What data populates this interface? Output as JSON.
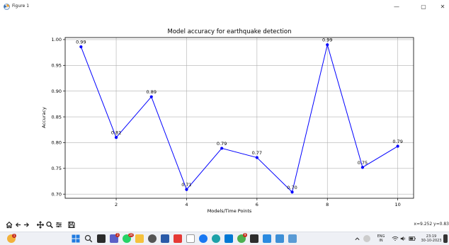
{
  "window": {
    "title": "Figure 1",
    "minimize": "—",
    "maximize": "▢",
    "close": "✕"
  },
  "chart_data": {
    "type": "line",
    "title": "Model accuracy for earthquake detection",
    "xlabel": "Models/Time Points",
    "ylabel": "Accuracy",
    "x": [
      1,
      2,
      3,
      4,
      5,
      6,
      7,
      8,
      9,
      10
    ],
    "values": [
      0.986,
      0.81,
      0.889,
      0.709,
      0.789,
      0.771,
      0.704,
      0.99,
      0.752,
      0.793
    ],
    "labels": [
      "0.99",
      "0.81",
      "0.89",
      "0.71",
      "0.79",
      "0.77",
      "0.70",
      "0.99",
      "0.75",
      "0.79"
    ],
    "xlim": [
      0.55,
      10.45
    ],
    "ylim": [
      0.692,
      1.004
    ],
    "xticks": [
      2,
      4,
      6,
      8,
      10
    ],
    "yticks": [
      0.7,
      0.75,
      0.8,
      0.85,
      0.9,
      0.95,
      1.0
    ],
    "ytick_labels": [
      "0.70",
      "0.75",
      "0.80",
      "0.85",
      "0.90",
      "0.95",
      "1.00"
    ],
    "grid": true,
    "color": "#0000ff"
  },
  "toolbar": {
    "home_icon": "home-icon",
    "back_icon": "back-arrow-icon",
    "forward_icon": "forward-arrow-icon",
    "pan_icon": "pan-icon",
    "zoom_icon": "zoom-icon",
    "config_icon": "configure-subplots-icon",
    "save_icon": "save-icon",
    "coords": "x=9.252 y=0.83"
  },
  "taskbar": {
    "tray": {
      "lang_top": "ENG",
      "lang_bottom": "IN",
      "time": "23:19",
      "date": "30-10-2023"
    },
    "badges": {
      "weather": "1",
      "teams": "3",
      "whatsapp": "20",
      "chrome": "9"
    }
  }
}
